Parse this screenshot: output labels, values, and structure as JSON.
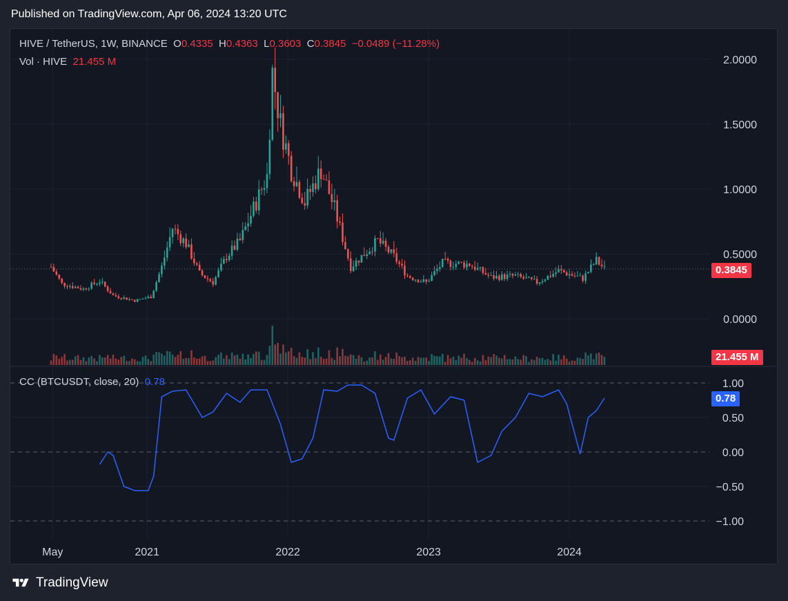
{
  "header": {
    "published": "Published on TradingView.com, Apr 06, 2024 13:20 UTC"
  },
  "footer": {
    "brand": "TradingView"
  },
  "legend": {
    "symbol": "HIVE / TetherUS, 1W, BINANCE",
    "o_label": "O",
    "o_value": "0.4335",
    "h_label": "H",
    "h_value": "0.4363",
    "l_label": "L",
    "l_value": "0.3603",
    "c_label": "C",
    "c_value": "0.3845",
    "change": "−0.0489 (−11.28%)",
    "vol_label": "Vol · HIVE",
    "vol_value": "21.455 M",
    "cc_label": "CC (BTCUSDT, close, 20)",
    "cc_value": "0.78"
  },
  "price_tag": "0.3845",
  "volume_tag": "21.455 M",
  "cc_tag": "0.78",
  "colors": {
    "up": "#26a69a",
    "down": "#ef5350",
    "cc": "#2962ff",
    "tag_red": "#f23645",
    "tag_blue": "#2962ff"
  },
  "chart_data": [
    {
      "type": "candlestick",
      "title": "HIVE / TetherUS, 1W, BINANCE",
      "ylim": [
        -0.3,
        2.25
      ],
      "y_ticks": [
        "2.0000",
        "1.5000",
        "1.0000",
        "0.5000",
        "0.0000"
      ],
      "y_tick_values": [
        2.0,
        1.5,
        1.0,
        0.5,
        0.0
      ],
      "x_ticks": [
        "May",
        "2021",
        "2022",
        "2023",
        "2024"
      ],
      "x_tick_dates": [
        "2020-05-01",
        "2021-01-01",
        "2022-01-01",
        "2023-01-01",
        "2024-01-01"
      ],
      "last_close": 0.3845,
      "series": [
        {
          "date": "2020-04-27",
          "close": 0.4
        },
        {
          "date": "2020-05-25",
          "close": 0.27
        },
        {
          "date": "2020-07-20",
          "close": 0.23
        },
        {
          "date": "2020-08-31",
          "close": 0.29
        },
        {
          "date": "2020-10-05",
          "close": 0.18
        },
        {
          "date": "2020-11-30",
          "close": 0.14
        },
        {
          "date": "2021-01-11",
          "close": 0.17
        },
        {
          "date": "2021-02-08",
          "close": 0.4
        },
        {
          "date": "2021-03-08",
          "close": 0.7
        },
        {
          "date": "2021-04-12",
          "close": 0.58
        },
        {
          "date": "2021-05-17",
          "close": 0.35
        },
        {
          "date": "2021-06-21",
          "close": 0.28
        },
        {
          "date": "2021-07-26",
          "close": 0.48
        },
        {
          "date": "2021-08-30",
          "close": 0.6
        },
        {
          "date": "2021-10-04",
          "close": 0.85
        },
        {
          "date": "2021-11-08",
          "close": 1.1
        },
        {
          "date": "2021-11-22",
          "close": 1.9
        },
        {
          "date": "2021-12-13",
          "close": 1.5
        },
        {
          "date": "2022-01-10",
          "close": 1.15
        },
        {
          "date": "2022-02-14",
          "close": 0.9
        },
        {
          "date": "2022-03-28",
          "close": 1.15
        },
        {
          "date": "2022-05-02",
          "close": 0.85
        },
        {
          "date": "2022-06-13",
          "close": 0.4
        },
        {
          "date": "2022-07-18",
          "close": 0.5
        },
        {
          "date": "2022-08-22",
          "close": 0.6
        },
        {
          "date": "2022-10-03",
          "close": 0.48
        },
        {
          "date": "2022-11-07",
          "close": 0.33
        },
        {
          "date": "2022-12-26",
          "close": 0.28
        },
        {
          "date": "2023-02-06",
          "close": 0.43
        },
        {
          "date": "2023-04-17",
          "close": 0.42
        },
        {
          "date": "2023-06-12",
          "close": 0.32
        },
        {
          "date": "2023-08-14",
          "close": 0.33
        },
        {
          "date": "2023-10-09",
          "close": 0.28
        },
        {
          "date": "2023-12-04",
          "close": 0.37
        },
        {
          "date": "2024-02-05",
          "close": 0.31
        },
        {
          "date": "2024-03-11",
          "close": 0.45
        },
        {
          "date": "2024-04-01",
          "close": 0.3845
        }
      ]
    },
    {
      "type": "bar",
      "title": "Vol · HIVE",
      "last_value": "21.455 M"
    },
    {
      "type": "line",
      "title": "CC (BTCUSDT, close, 20)",
      "ylim": [
        -1.2,
        1.1
      ],
      "y_ticks": [
        "1.00",
        "0.50",
        "0.00",
        "−0.50",
        "−1.00"
      ],
      "y_tick_values": [
        1.0,
        0.5,
        0.0,
        -0.5,
        -1.0
      ],
      "last_value": 0.78,
      "series": [
        {
          "date": "2020-08-31",
          "value": -0.18
        },
        {
          "date": "2020-09-21",
          "value": 0.0
        },
        {
          "date": "2020-10-05",
          "value": -0.05
        },
        {
          "date": "2020-11-02",
          "value": -0.5
        },
        {
          "date": "2020-11-30",
          "value": -0.56
        },
        {
          "date": "2021-01-04",
          "value": -0.56
        },
        {
          "date": "2021-01-18",
          "value": -0.35
        },
        {
          "date": "2021-02-08",
          "value": 0.8
        },
        {
          "date": "2021-03-08",
          "value": 0.88
        },
        {
          "date": "2021-04-12",
          "value": 0.9
        },
        {
          "date": "2021-05-24",
          "value": 0.5
        },
        {
          "date": "2021-06-21",
          "value": 0.58
        },
        {
          "date": "2021-07-26",
          "value": 0.85
        },
        {
          "date": "2021-08-30",
          "value": 0.72
        },
        {
          "date": "2021-09-27",
          "value": 0.9
        },
        {
          "date": "2021-11-08",
          "value": 0.9
        },
        {
          "date": "2021-12-13",
          "value": 0.4
        },
        {
          "date": "2022-01-10",
          "value": -0.15
        },
        {
          "date": "2022-02-07",
          "value": -0.1
        },
        {
          "date": "2022-03-07",
          "value": 0.2
        },
        {
          "date": "2022-04-04",
          "value": 0.9
        },
        {
          "date": "2022-05-09",
          "value": 0.88
        },
        {
          "date": "2022-06-06",
          "value": 0.97
        },
        {
          "date": "2022-07-11",
          "value": 0.97
        },
        {
          "date": "2022-08-15",
          "value": 0.85
        },
        {
          "date": "2022-09-19",
          "value": 0.2
        },
        {
          "date": "2022-10-03",
          "value": 0.17
        },
        {
          "date": "2022-11-07",
          "value": 0.78
        },
        {
          "date": "2022-12-12",
          "value": 0.9
        },
        {
          "date": "2023-01-16",
          "value": 0.55
        },
        {
          "date": "2023-02-27",
          "value": 0.8
        },
        {
          "date": "2023-04-03",
          "value": 0.75
        },
        {
          "date": "2023-05-08",
          "value": -0.15
        },
        {
          "date": "2023-06-12",
          "value": -0.05
        },
        {
          "date": "2023-07-10",
          "value": 0.3
        },
        {
          "date": "2023-08-14",
          "value": 0.5
        },
        {
          "date": "2023-09-18",
          "value": 0.85
        },
        {
          "date": "2023-10-23",
          "value": 0.8
        },
        {
          "date": "2023-12-04",
          "value": 0.9
        },
        {
          "date": "2023-12-25",
          "value": 0.7
        },
        {
          "date": "2024-01-29",
          "value": -0.03
        },
        {
          "date": "2024-02-19",
          "value": 0.5
        },
        {
          "date": "2024-03-11",
          "value": 0.6
        },
        {
          "date": "2024-04-01",
          "value": 0.78
        }
      ]
    }
  ]
}
